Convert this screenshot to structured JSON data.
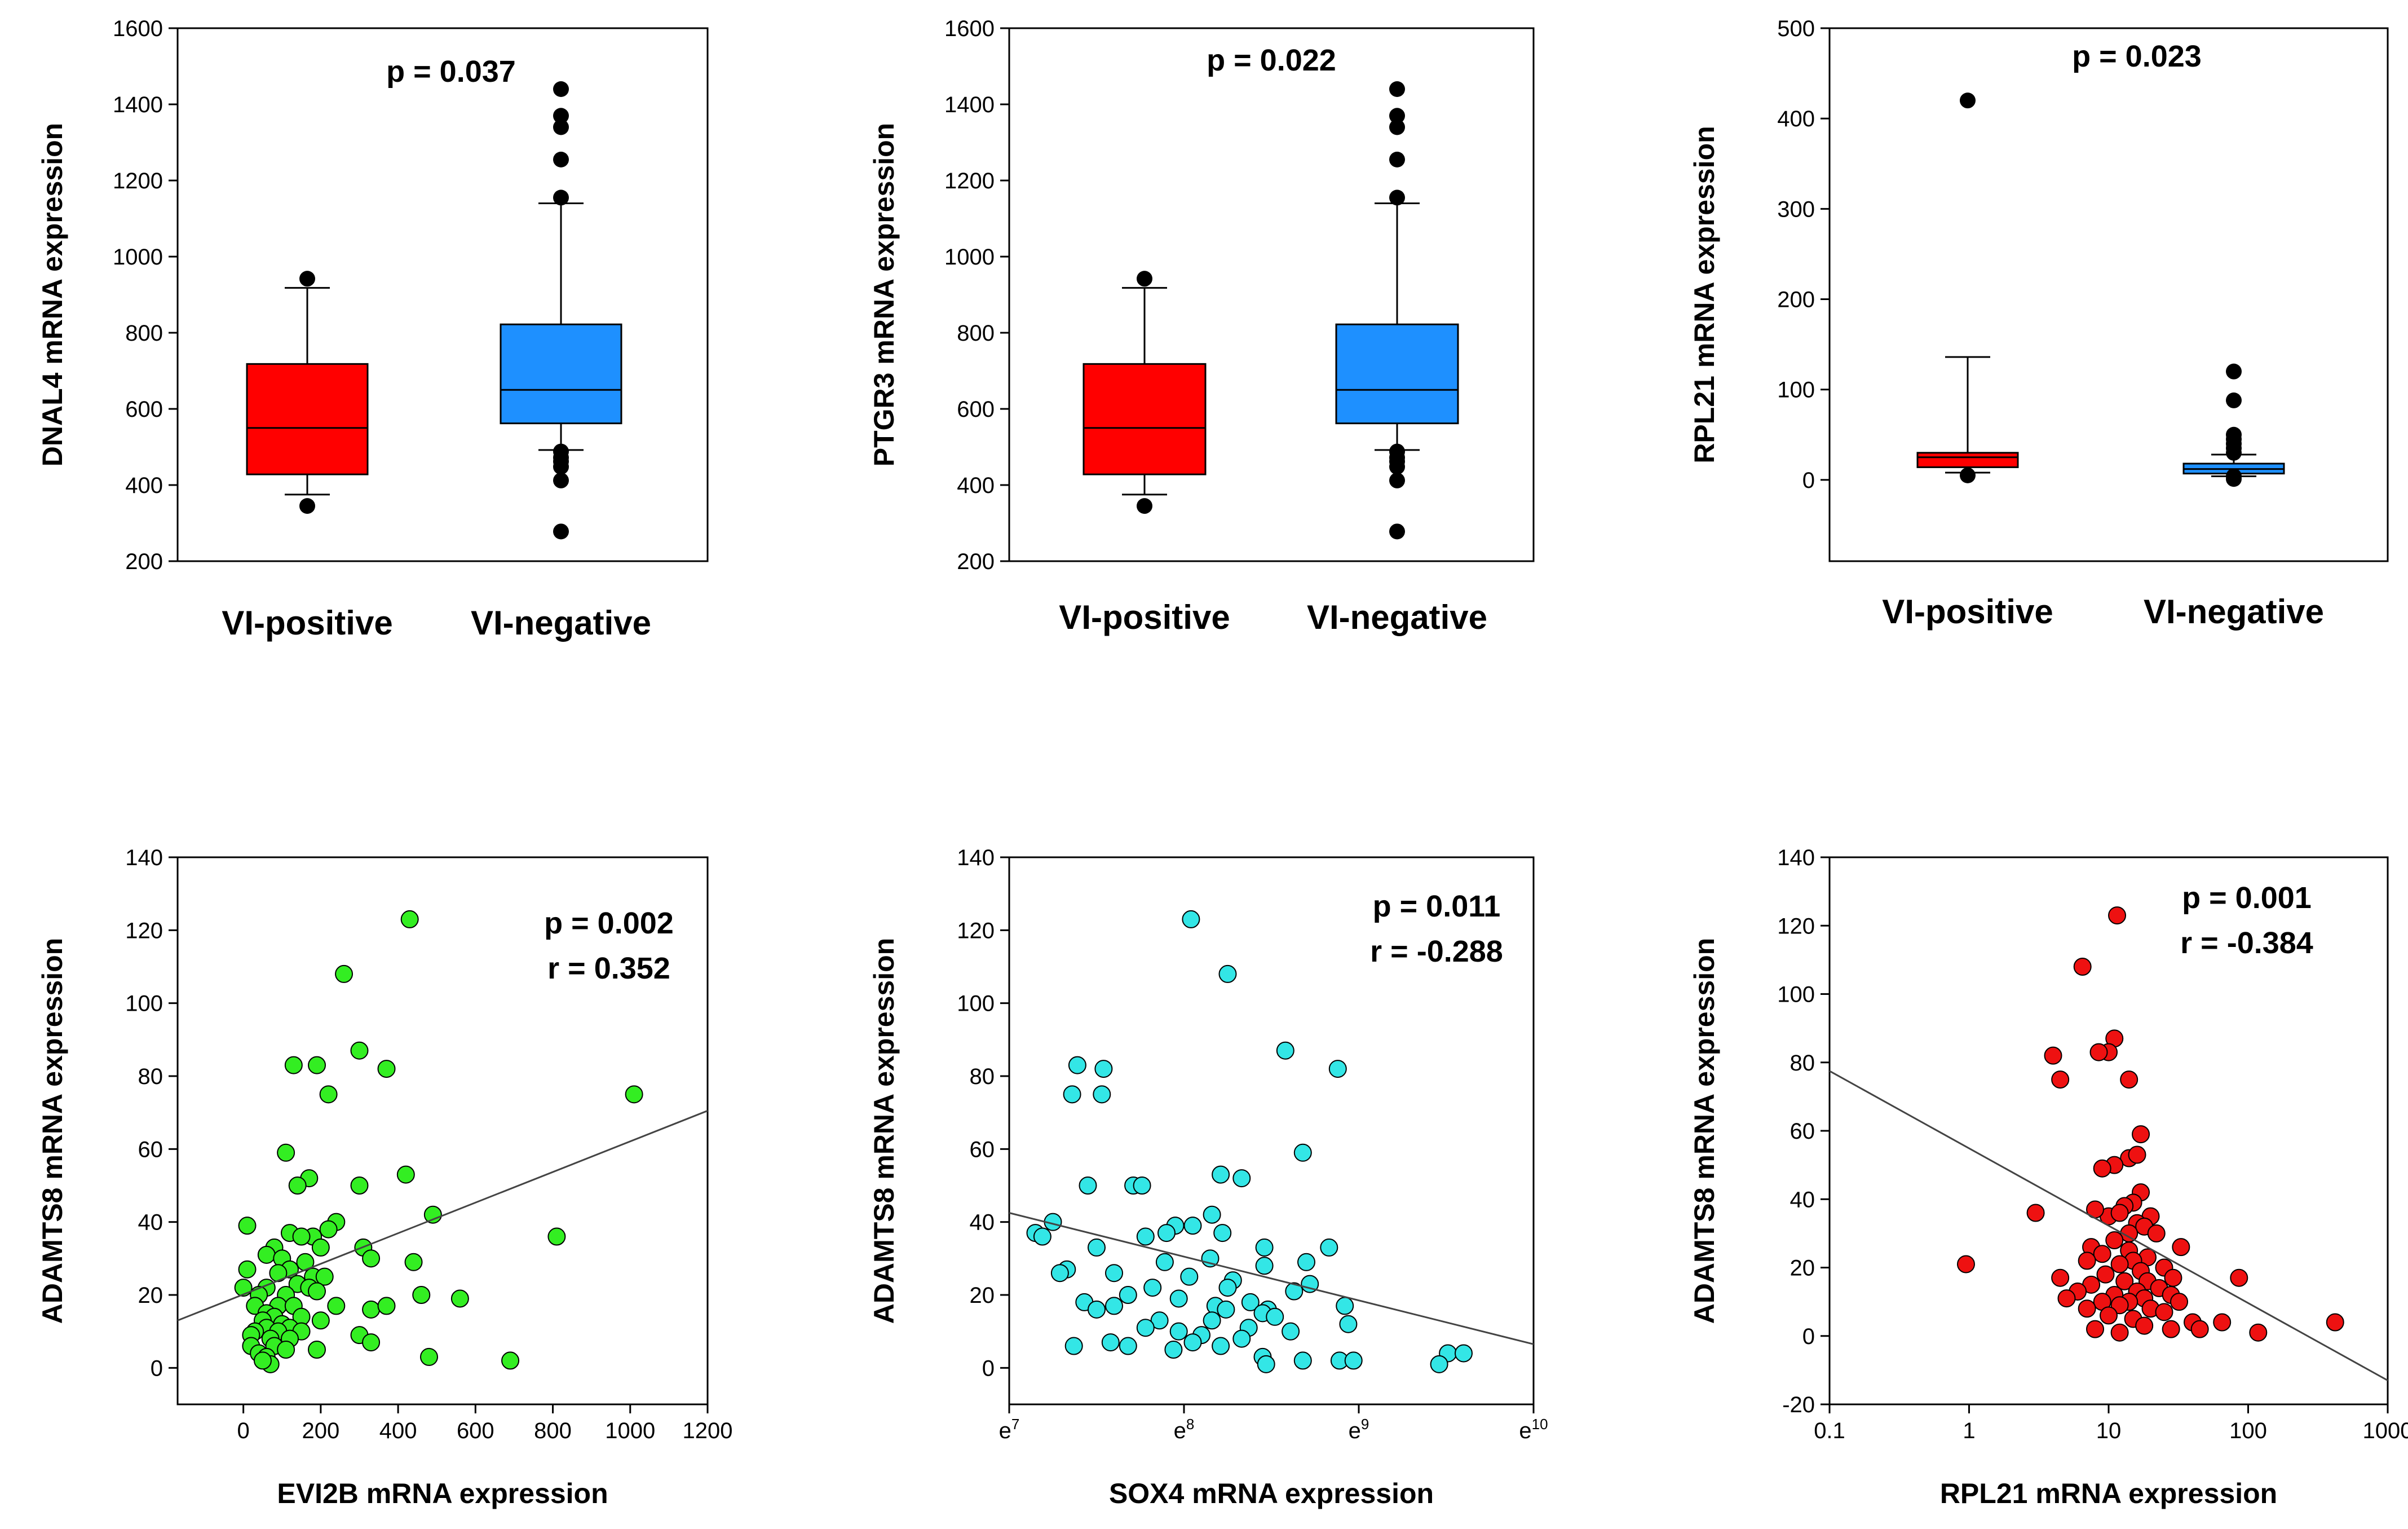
{
  "chart_data": [
    {
      "type": "box",
      "ylabel": "DNAL4 mRNA expression",
      "ylim": [
        200,
        1600
      ],
      "yticks": [
        200,
        400,
        600,
        800,
        1000,
        1200,
        1400,
        1600
      ],
      "categories": [
        "VI-positive",
        "VI-negative"
      ],
      "annotations": [
        "p = 0.037"
      ],
      "series": [
        {
          "category": "VI-positive",
          "color": "#ff0000",
          "whisker_low": 375,
          "q1": 428,
          "median": 550,
          "q3": 718,
          "whisker_high": 918,
          "outliers": [
            345,
            942
          ]
        },
        {
          "category": "VI-negative",
          "color": "#1e90ff",
          "whisker_low": 492,
          "q1": 562,
          "median": 650,
          "q3": 822,
          "whisker_high": 1140,
          "outliers": [
            278,
            412,
            448,
            462,
            472,
            488,
            1155,
            1255,
            1340,
            1370,
            1440
          ]
        }
      ]
    },
    {
      "type": "box",
      "ylabel": "PTGR3 mRNA expression",
      "ylim": [
        200,
        1600
      ],
      "yticks": [
        200,
        400,
        600,
        800,
        1000,
        1200,
        1400,
        1600
      ],
      "categories": [
        "VI-positive",
        "VI-negative"
      ],
      "annotations": [
        "p = 0.022"
      ],
      "series": [
        {
          "category": "VI-positive",
          "color": "#ff0000",
          "whisker_low": 375,
          "q1": 428,
          "median": 550,
          "q3": 718,
          "whisker_high": 918,
          "outliers": [
            345,
            942
          ]
        },
        {
          "category": "VI-negative",
          "color": "#1e90ff",
          "whisker_low": 492,
          "q1": 562,
          "median": 650,
          "q3": 822,
          "whisker_high": 1140,
          "outliers": [
            278,
            412,
            448,
            462,
            472,
            488,
            1155,
            1255,
            1340,
            1370,
            1440
          ]
        }
      ]
    },
    {
      "type": "box",
      "ylabel": "RPL21 mRNA expression",
      "ylim": [
        -90,
        500
      ],
      "yticks": [
        0,
        100,
        200,
        300,
        400,
        500
      ],
      "categories": [
        "VI-positive",
        "VI-negative"
      ],
      "annotations": [
        "p = 0.023"
      ],
      "series": [
        {
          "category": "VI-positive",
          "color": "#ff0000",
          "whisker_low": 8,
          "q1": 14,
          "median": 25,
          "q3": 30,
          "whisker_high": 136,
          "outliers": [
            5,
            420
          ]
        },
        {
          "category": "VI-negative",
          "color": "#1e90ff",
          "whisker_low": 4,
          "q1": 7,
          "median": 12,
          "q3": 18,
          "whisker_high": 28,
          "outliers": [
            1,
            4,
            30,
            35,
            40,
            45,
            50,
            88,
            120
          ]
        }
      ]
    },
    {
      "type": "scatter",
      "xlabel": "EVI2B mRNA expression",
      "ylabel": "ADAMTS8 mRNA expression",
      "xscale": "linear",
      "xlim": [
        -170,
        1200
      ],
      "ylim": [
        -10,
        140
      ],
      "xticks": [
        {
          "v": 0,
          "t": "0"
        },
        {
          "v": 200,
          "t": "200"
        },
        {
          "v": 400,
          "t": "400"
        },
        {
          "v": 600,
          "t": "600"
        },
        {
          "v": 800,
          "t": "800"
        },
        {
          "v": 1000,
          "t": "1000"
        },
        {
          "v": 1200,
          "t": "1200"
        }
      ],
      "yticks": [
        0,
        20,
        40,
        60,
        80,
        100,
        120,
        140
      ],
      "color": "#33ee22",
      "annotations": [
        "p = 0.002",
        "r = 0.352"
      ],
      "fit": {
        "x": [
          -170,
          1200
        ],
        "y": [
          13,
          70.5
        ]
      },
      "points": [
        [
          430,
          123
        ],
        [
          260,
          108
        ],
        [
          300,
          87
        ],
        [
          130,
          83
        ],
        [
          190,
          83
        ],
        [
          370,
          82
        ],
        [
          1010,
          75
        ],
        [
          220,
          75
        ],
        [
          110,
          59
        ],
        [
          170,
          52
        ],
        [
          420,
          53
        ],
        [
          140,
          50
        ],
        [
          300,
          50
        ],
        [
          490,
          42
        ],
        [
          810,
          36
        ],
        [
          10,
          39
        ],
        [
          240,
          40
        ],
        [
          220,
          38
        ],
        [
          180,
          36
        ],
        [
          120,
          37
        ],
        [
          150,
          36
        ],
        [
          80,
          33
        ],
        [
          200,
          33
        ],
        [
          310,
          33
        ],
        [
          330,
          30
        ],
        [
          440,
          29
        ],
        [
          60,
          31
        ],
        [
          100,
          30
        ],
        [
          160,
          29
        ],
        [
          120,
          27
        ],
        [
          10,
          27
        ],
        [
          180,
          25
        ],
        [
          210,
          25
        ],
        [
          90,
          26
        ],
        [
          140,
          23
        ],
        [
          60,
          22
        ],
        [
          170,
          22
        ],
        [
          190,
          21
        ],
        [
          0,
          22
        ],
        [
          110,
          20
        ],
        [
          40,
          20
        ],
        [
          460,
          20
        ],
        [
          560,
          19
        ],
        [
          30,
          17
        ],
        [
          90,
          17
        ],
        [
          130,
          17
        ],
        [
          240,
          17
        ],
        [
          330,
          16
        ],
        [
          370,
          17
        ],
        [
          60,
          15
        ],
        [
          80,
          14
        ],
        [
          150,
          14
        ],
        [
          50,
          13
        ],
        [
          100,
          12
        ],
        [
          200,
          13
        ],
        [
          60,
          11
        ],
        [
          120,
          11
        ],
        [
          30,
          10
        ],
        [
          90,
          10
        ],
        [
          20,
          9
        ],
        [
          150,
          10
        ],
        [
          300,
          9
        ],
        [
          70,
          8
        ],
        [
          120,
          8
        ],
        [
          20,
          6
        ],
        [
          80,
          6
        ],
        [
          330,
          7
        ],
        [
          40,
          4
        ],
        [
          110,
          5
        ],
        [
          190,
          5
        ],
        [
          60,
          3
        ],
        [
          480,
          3
        ],
        [
          690,
          2
        ],
        [
          70,
          1
        ],
        [
          50,
          2
        ]
      ]
    },
    {
      "type": "scatter",
      "xlabel": "SOX4 mRNA expression",
      "ylabel": "ADAMTS8 mRNA expression",
      "xscale": "exp-index",
      "xlim": [
        7,
        10
      ],
      "ylim": [
        -10,
        140
      ],
      "xticks": [
        {
          "v": 7,
          "t": "e",
          "sup": "7"
        },
        {
          "v": 8,
          "t": "e",
          "sup": "8"
        },
        {
          "v": 9,
          "t": "e",
          "sup": "9"
        },
        {
          "v": 10,
          "t": "e",
          "sup": "10"
        }
      ],
      "yticks": [
        0,
        20,
        40,
        60,
        80,
        100,
        120,
        140
      ],
      "color": "#33e6e6",
      "annotations": [
        "p = 0.011",
        "r = -0.288"
      ],
      "fit": {
        "x": [
          7,
          10
        ],
        "y": [
          42.5,
          6.5
        ]
      },
      "points": [
        [
          8.04,
          123
        ],
        [
          8.25,
          108
        ],
        [
          7.39,
          83
        ],
        [
          7.54,
          82
        ],
        [
          8.58,
          87
        ],
        [
          8.88,
          82
        ],
        [
          7.36,
          75
        ],
        [
          7.53,
          75
        ],
        [
          7.71,
          50
        ],
        [
          7.76,
          50
        ],
        [
          7.45,
          50
        ],
        [
          8.21,
          53
        ],
        [
          8.33,
          52
        ],
        [
          8.68,
          59
        ],
        [
          8.16,
          42
        ],
        [
          7.25,
          40
        ],
        [
          7.95,
          39
        ],
        [
          8.05,
          39
        ],
        [
          7.9,
          37
        ],
        [
          8.22,
          37
        ],
        [
          7.15,
          37
        ],
        [
          7.19,
          36
        ],
        [
          7.78,
          36
        ],
        [
          8.46,
          33
        ],
        [
          8.83,
          33
        ],
        [
          7.5,
          33
        ],
        [
          8.7,
          29
        ],
        [
          7.89,
          29
        ],
        [
          8.15,
          30
        ],
        [
          7.33,
          27
        ],
        [
          8.46,
          28
        ],
        [
          7.6,
          26
        ],
        [
          7.29,
          26
        ],
        [
          8.03,
          25
        ],
        [
          8.28,
          24
        ],
        [
          8.72,
          23
        ],
        [
          7.82,
          22
        ],
        [
          8.25,
          22
        ],
        [
          8.63,
          21
        ],
        [
          7.68,
          20
        ],
        [
          7.97,
          19
        ],
        [
          8.38,
          18
        ],
        [
          7.43,
          18
        ],
        [
          8.48,
          16
        ],
        [
          7.6,
          17
        ],
        [
          8.18,
          17
        ],
        [
          8.92,
          17
        ],
        [
          7.5,
          16
        ],
        [
          8.45,
          15
        ],
        [
          8.24,
          16
        ],
        [
          8.52,
          14
        ],
        [
          7.86,
          13
        ],
        [
          8.16,
          13
        ],
        [
          8.94,
          12
        ],
        [
          8.37,
          11
        ],
        [
          7.78,
          11
        ],
        [
          7.97,
          10
        ],
        [
          8.61,
          10
        ],
        [
          8.1,
          9
        ],
        [
          8.33,
          8
        ],
        [
          8.05,
          7
        ],
        [
          8.21,
          6
        ],
        [
          7.68,
          6
        ],
        [
          7.58,
          7
        ],
        [
          7.37,
          6
        ],
        [
          7.94,
          5
        ],
        [
          8.45,
          3
        ],
        [
          8.68,
          2
        ],
        [
          8.89,
          2
        ],
        [
          8.97,
          2
        ],
        [
          8.47,
          1
        ],
        [
          9.51,
          4
        ],
        [
          9.6,
          4
        ],
        [
          9.46,
          1
        ]
      ]
    },
    {
      "type": "scatter",
      "xlabel": "RPL21 mRNA expression",
      "ylabel": "ADAMTS8 mRNA expression",
      "xscale": "log",
      "xlim": [
        0.1,
        1000
      ],
      "ylim": [
        -20,
        140
      ],
      "xticks": [
        {
          "v": 0.1,
          "t": "0.1"
        },
        {
          "v": 1,
          "t": "1"
        },
        {
          "v": 10,
          "t": "10"
        },
        {
          "v": 100,
          "t": "100"
        },
        {
          "v": 1000,
          "t": "1000"
        }
      ],
      "yticks": [
        -20,
        0,
        20,
        40,
        60,
        80,
        100,
        120,
        140
      ],
      "color": "#ee1111",
      "annotations": [
        "p = 0.001",
        "r = -0.384"
      ],
      "fit": {
        "x": [
          0.1,
          1000
        ],
        "y": [
          77.5,
          -13
        ]
      },
      "points": [
        [
          11.5,
          123
        ],
        [
          6.5,
          108
        ],
        [
          11,
          87
        ],
        [
          10,
          83
        ],
        [
          8.5,
          83
        ],
        [
          14,
          75
        ],
        [
          4,
          82
        ],
        [
          4.5,
          75
        ],
        [
          17,
          59
        ],
        [
          14,
          52
        ],
        [
          16,
          53
        ],
        [
          11,
          50
        ],
        [
          9,
          49
        ],
        [
          17,
          42
        ],
        [
          15,
          39
        ],
        [
          13,
          38
        ],
        [
          10,
          35
        ],
        [
          12,
          36
        ],
        [
          20,
          35
        ],
        [
          3,
          36
        ],
        [
          8,
          37
        ],
        [
          16,
          33
        ],
        [
          18,
          32
        ],
        [
          14,
          30
        ],
        [
          22,
          30
        ],
        [
          11,
          28
        ],
        [
          7.5,
          26
        ],
        [
          33,
          26
        ],
        [
          14,
          25
        ],
        [
          9,
          24
        ],
        [
          19,
          23
        ],
        [
          15,
          22
        ],
        [
          7,
          22
        ],
        [
          12,
          21
        ],
        [
          25,
          20
        ],
        [
          17,
          19
        ],
        [
          9.5,
          18
        ],
        [
          29,
          17
        ],
        [
          13,
          16
        ],
        [
          4.5,
          17
        ],
        [
          86,
          17
        ],
        [
          19,
          16
        ],
        [
          7.5,
          15
        ],
        [
          23,
          14
        ],
        [
          16,
          13
        ],
        [
          11,
          12
        ],
        [
          6,
          13
        ],
        [
          28,
          12
        ],
        [
          18,
          11
        ],
        [
          14,
          10
        ],
        [
          9,
          10
        ],
        [
          5,
          11
        ],
        [
          32,
          10
        ],
        [
          12,
          9
        ],
        [
          7,
          8
        ],
        [
          20,
          8
        ],
        [
          25,
          7
        ],
        [
          10,
          6
        ],
        [
          15,
          5
        ],
        [
          40,
          4
        ],
        [
          65,
          4
        ],
        [
          420,
          4
        ],
        [
          18,
          3
        ],
        [
          8,
          2
        ],
        [
          45,
          2
        ],
        [
          12,
          1
        ],
        [
          118,
          1
        ],
        [
          0.95,
          21
        ],
        [
          28,
          2
        ]
      ]
    }
  ]
}
